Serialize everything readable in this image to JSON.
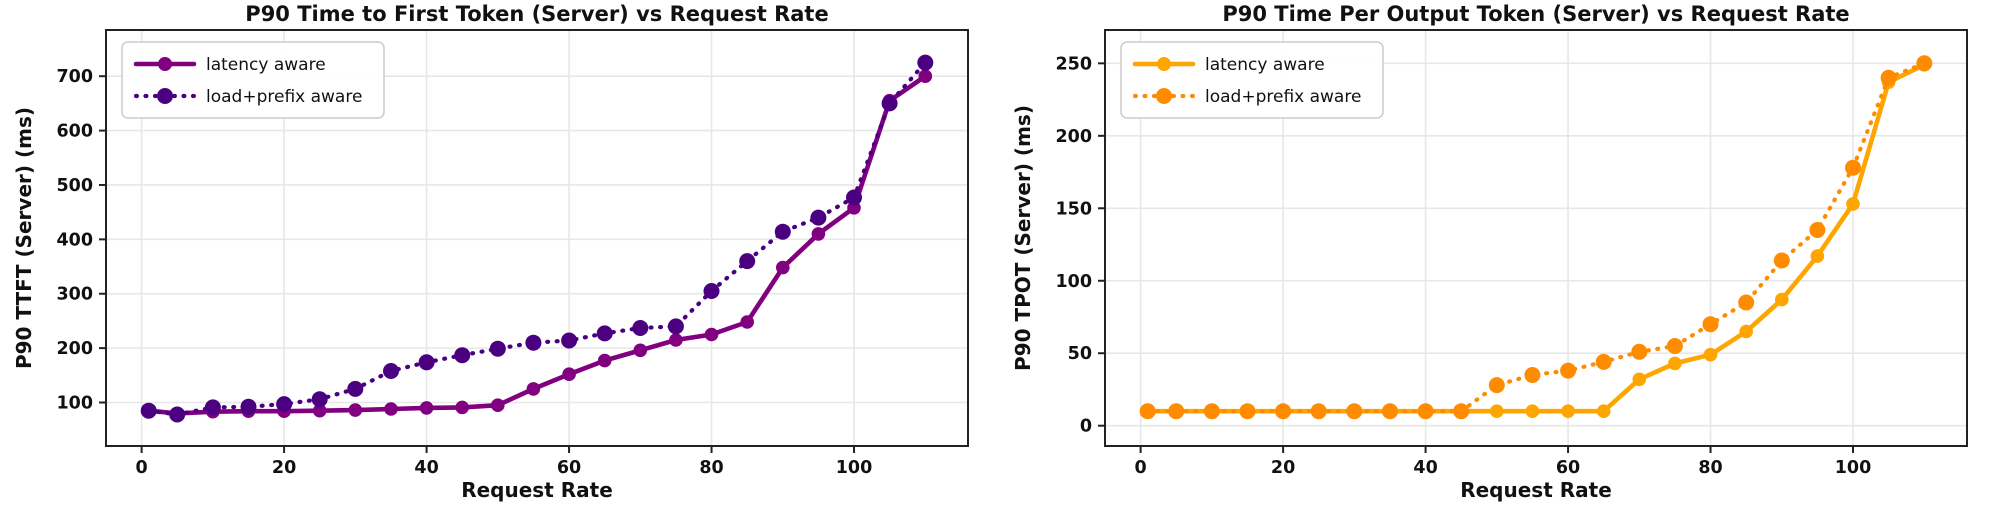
{
  "figure_name": "latency-vs-request-rate-figure",
  "chart_data": [
    {
      "type": "line",
      "title": "P90 Time to First Token (Server) vs Request Rate",
      "xlabel": "Request Rate",
      "ylabel": "P90 TTFT (Server) (ms)",
      "xlim": [
        -5,
        116
      ],
      "ylim": [
        20,
        785
      ],
      "xticks": [
        0,
        20,
        40,
        60,
        80,
        100
      ],
      "yticks": [
        100,
        200,
        300,
        400,
        500,
        600,
        700
      ],
      "grid": true,
      "legend_position": "upper left",
      "x": [
        1,
        5,
        10,
        15,
        20,
        25,
        30,
        35,
        40,
        45,
        50,
        55,
        60,
        65,
        70,
        75,
        80,
        85,
        90,
        95,
        100,
        105,
        110
      ],
      "series": [
        {
          "name": "latency aware",
          "style": "solid",
          "marker": "circle",
          "color": "#800080",
          "values": [
            85,
            80,
            83,
            84,
            84,
            85,
            86,
            88,
            90,
            91,
            95,
            125,
            152,
            177,
            196,
            215,
            225,
            248,
            348,
            410,
            458,
            655,
            700
          ]
        },
        {
          "name": "load+prefix aware",
          "style": "dotted",
          "marker": "circle",
          "color": "#4B0082",
          "values": [
            85,
            78,
            91,
            92,
            97,
            106,
            125,
            158,
            174,
            187,
            199,
            210,
            214,
            227,
            237,
            240,
            305,
            360,
            414,
            440,
            477,
            650,
            725
          ]
        }
      ]
    },
    {
      "type": "line",
      "title": "P90 Time Per Output Token (Server) vs Request Rate",
      "xlabel": "Request Rate",
      "ylabel": "P90 TPOT (Server) (ms)",
      "xlim": [
        -5,
        116
      ],
      "ylim": [
        -14,
        273
      ],
      "xticks": [
        0,
        20,
        40,
        60,
        80,
        100
      ],
      "yticks": [
        0,
        50,
        100,
        150,
        200,
        250
      ],
      "grid": true,
      "legend_position": "upper left",
      "x": [
        1,
        5,
        10,
        15,
        20,
        25,
        30,
        35,
        40,
        45,
        50,
        55,
        60,
        65,
        70,
        75,
        80,
        85,
        90,
        95,
        100,
        105,
        110
      ],
      "series": [
        {
          "name": "latency aware",
          "style": "solid",
          "marker": "circle",
          "color": "#FFA500",
          "values": [
            10,
            10,
            10,
            10,
            10,
            10,
            10,
            10,
            10,
            10,
            10,
            10,
            10,
            10,
            32,
            43,
            49,
            65,
            87,
            117,
            153,
            237,
            249
          ]
        },
        {
          "name": "load+prefix aware",
          "style": "dotted",
          "marker": "circle",
          "color": "#FF8C00",
          "values": [
            10,
            10,
            10,
            10,
            10,
            10,
            10,
            10,
            10,
            10,
            28,
            35,
            38,
            44,
            51,
            55,
            70,
            85,
            114,
            135,
            178,
            240,
            250
          ]
        }
      ]
    }
  ]
}
